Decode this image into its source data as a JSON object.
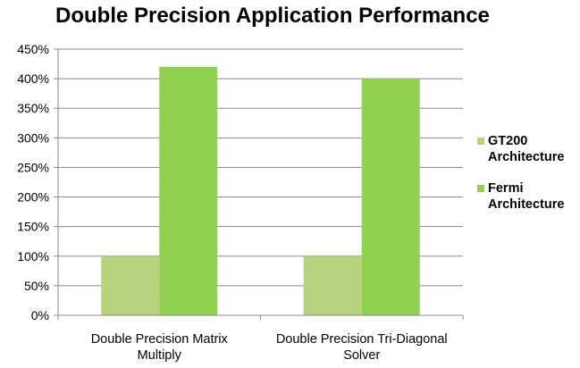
{
  "chart_data": {
    "type": "bar",
    "title": "Double Precision Application Performance",
    "categories": [
      [
        "Double Precision Matrix",
        "Multiply"
      ],
      [
        "Double Precision Tri-Diagonal",
        "Solver"
      ]
    ],
    "series": [
      {
        "name": [
          "GT200",
          "Architecture"
        ],
        "values": [
          100,
          100
        ],
        "color": "#b6d27f"
      },
      {
        "name": [
          "Fermi",
          "Architecture"
        ],
        "values": [
          420,
          400
        ],
        "color": "#92d050"
      }
    ],
    "ylim": [
      0,
      450
    ],
    "yticks": [
      "0%",
      "50%",
      "100%",
      "150%",
      "200%",
      "250%",
      "300%",
      "350%",
      "400%",
      "450%"
    ],
    "grid": true,
    "legend": "right"
  }
}
